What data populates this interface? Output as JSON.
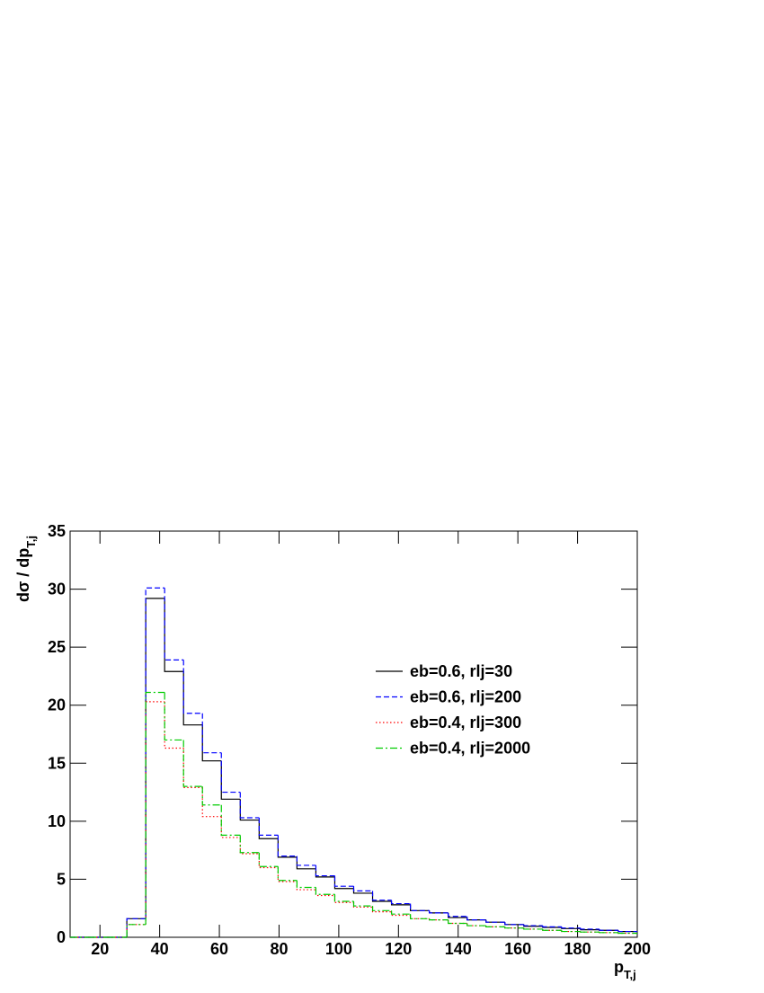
{
  "chart_data": {
    "type": "histogram",
    "x_label": "p",
    "x_label_sub": "T,j",
    "y_label": "dσ / dp",
    "y_label_sub": "T,j",
    "bins": [
      10,
      16.333,
      22.667,
      29,
      35.333,
      41.667,
      48,
      54.333,
      60.667,
      67,
      73.333,
      79.667,
      86,
      92.333,
      98.667,
      105,
      111.333,
      117.667,
      124,
      130.333,
      136.667,
      143,
      149.333,
      155.667,
      162,
      168.333,
      174.667,
      181,
      187.333,
      193.667,
      200
    ],
    "series": [
      {
        "name": "eb=0.6, rlj=30",
        "color": "#000000",
        "dash": "solid",
        "values": [
          0,
          0,
          0,
          1.6,
          29.2,
          22.9,
          18.3,
          15.2,
          11.9,
          10.1,
          8.5,
          6.9,
          5.9,
          5.2,
          4.2,
          3.8,
          3.1,
          2.8,
          2.3,
          2.1,
          1.7,
          1.5,
          1.3,
          1.1,
          0.95,
          0.85,
          0.75,
          0.65,
          0.6,
          0.5
        ]
      },
      {
        "name": "eb=0.6, rlj=200",
        "color": "#0000ff",
        "dash": "dashed",
        "values": [
          0,
          0,
          0,
          1.6,
          30.1,
          23.9,
          19.3,
          15.9,
          12.5,
          10.3,
          8.8,
          7.0,
          6.2,
          5.3,
          4.4,
          4.0,
          3.2,
          2.9,
          2.3,
          2.1,
          1.8,
          1.5,
          1.3,
          1.1,
          1.0,
          0.9,
          0.8,
          0.7,
          0.6,
          0.5
        ]
      },
      {
        "name": "eb=0.4, rlj=300",
        "color": "#ff0000",
        "dash": "dotted",
        "values": [
          0,
          0,
          0,
          1.1,
          20.3,
          16.3,
          12.9,
          10.4,
          8.6,
          7.2,
          6.0,
          4.8,
          4.1,
          3.6,
          3.0,
          2.6,
          2.2,
          1.9,
          1.6,
          1.5,
          1.2,
          1.0,
          0.9,
          0.8,
          0.7,
          0.6,
          0.5,
          0.45,
          0.4,
          0.35
        ]
      },
      {
        "name": "eb=0.4, rlj=2000",
        "color": "#00cc00",
        "dash": "dashdot",
        "values": [
          0,
          0,
          0,
          1.1,
          21.1,
          17.0,
          13.0,
          11.4,
          8.8,
          7.3,
          6.1,
          4.9,
          4.3,
          3.7,
          3.1,
          2.7,
          2.3,
          2.0,
          1.6,
          1.5,
          1.2,
          1.0,
          0.9,
          0.8,
          0.7,
          0.6,
          0.5,
          0.45,
          0.4,
          0.35
        ]
      }
    ],
    "xlim": [
      10,
      200
    ],
    "xticks": [
      20,
      40,
      60,
      80,
      100,
      120,
      140,
      160,
      180,
      200
    ],
    "ylim": [
      0,
      35
    ],
    "yticks": [
      0,
      5,
      10,
      15,
      20,
      25,
      30,
      35
    ]
  }
}
